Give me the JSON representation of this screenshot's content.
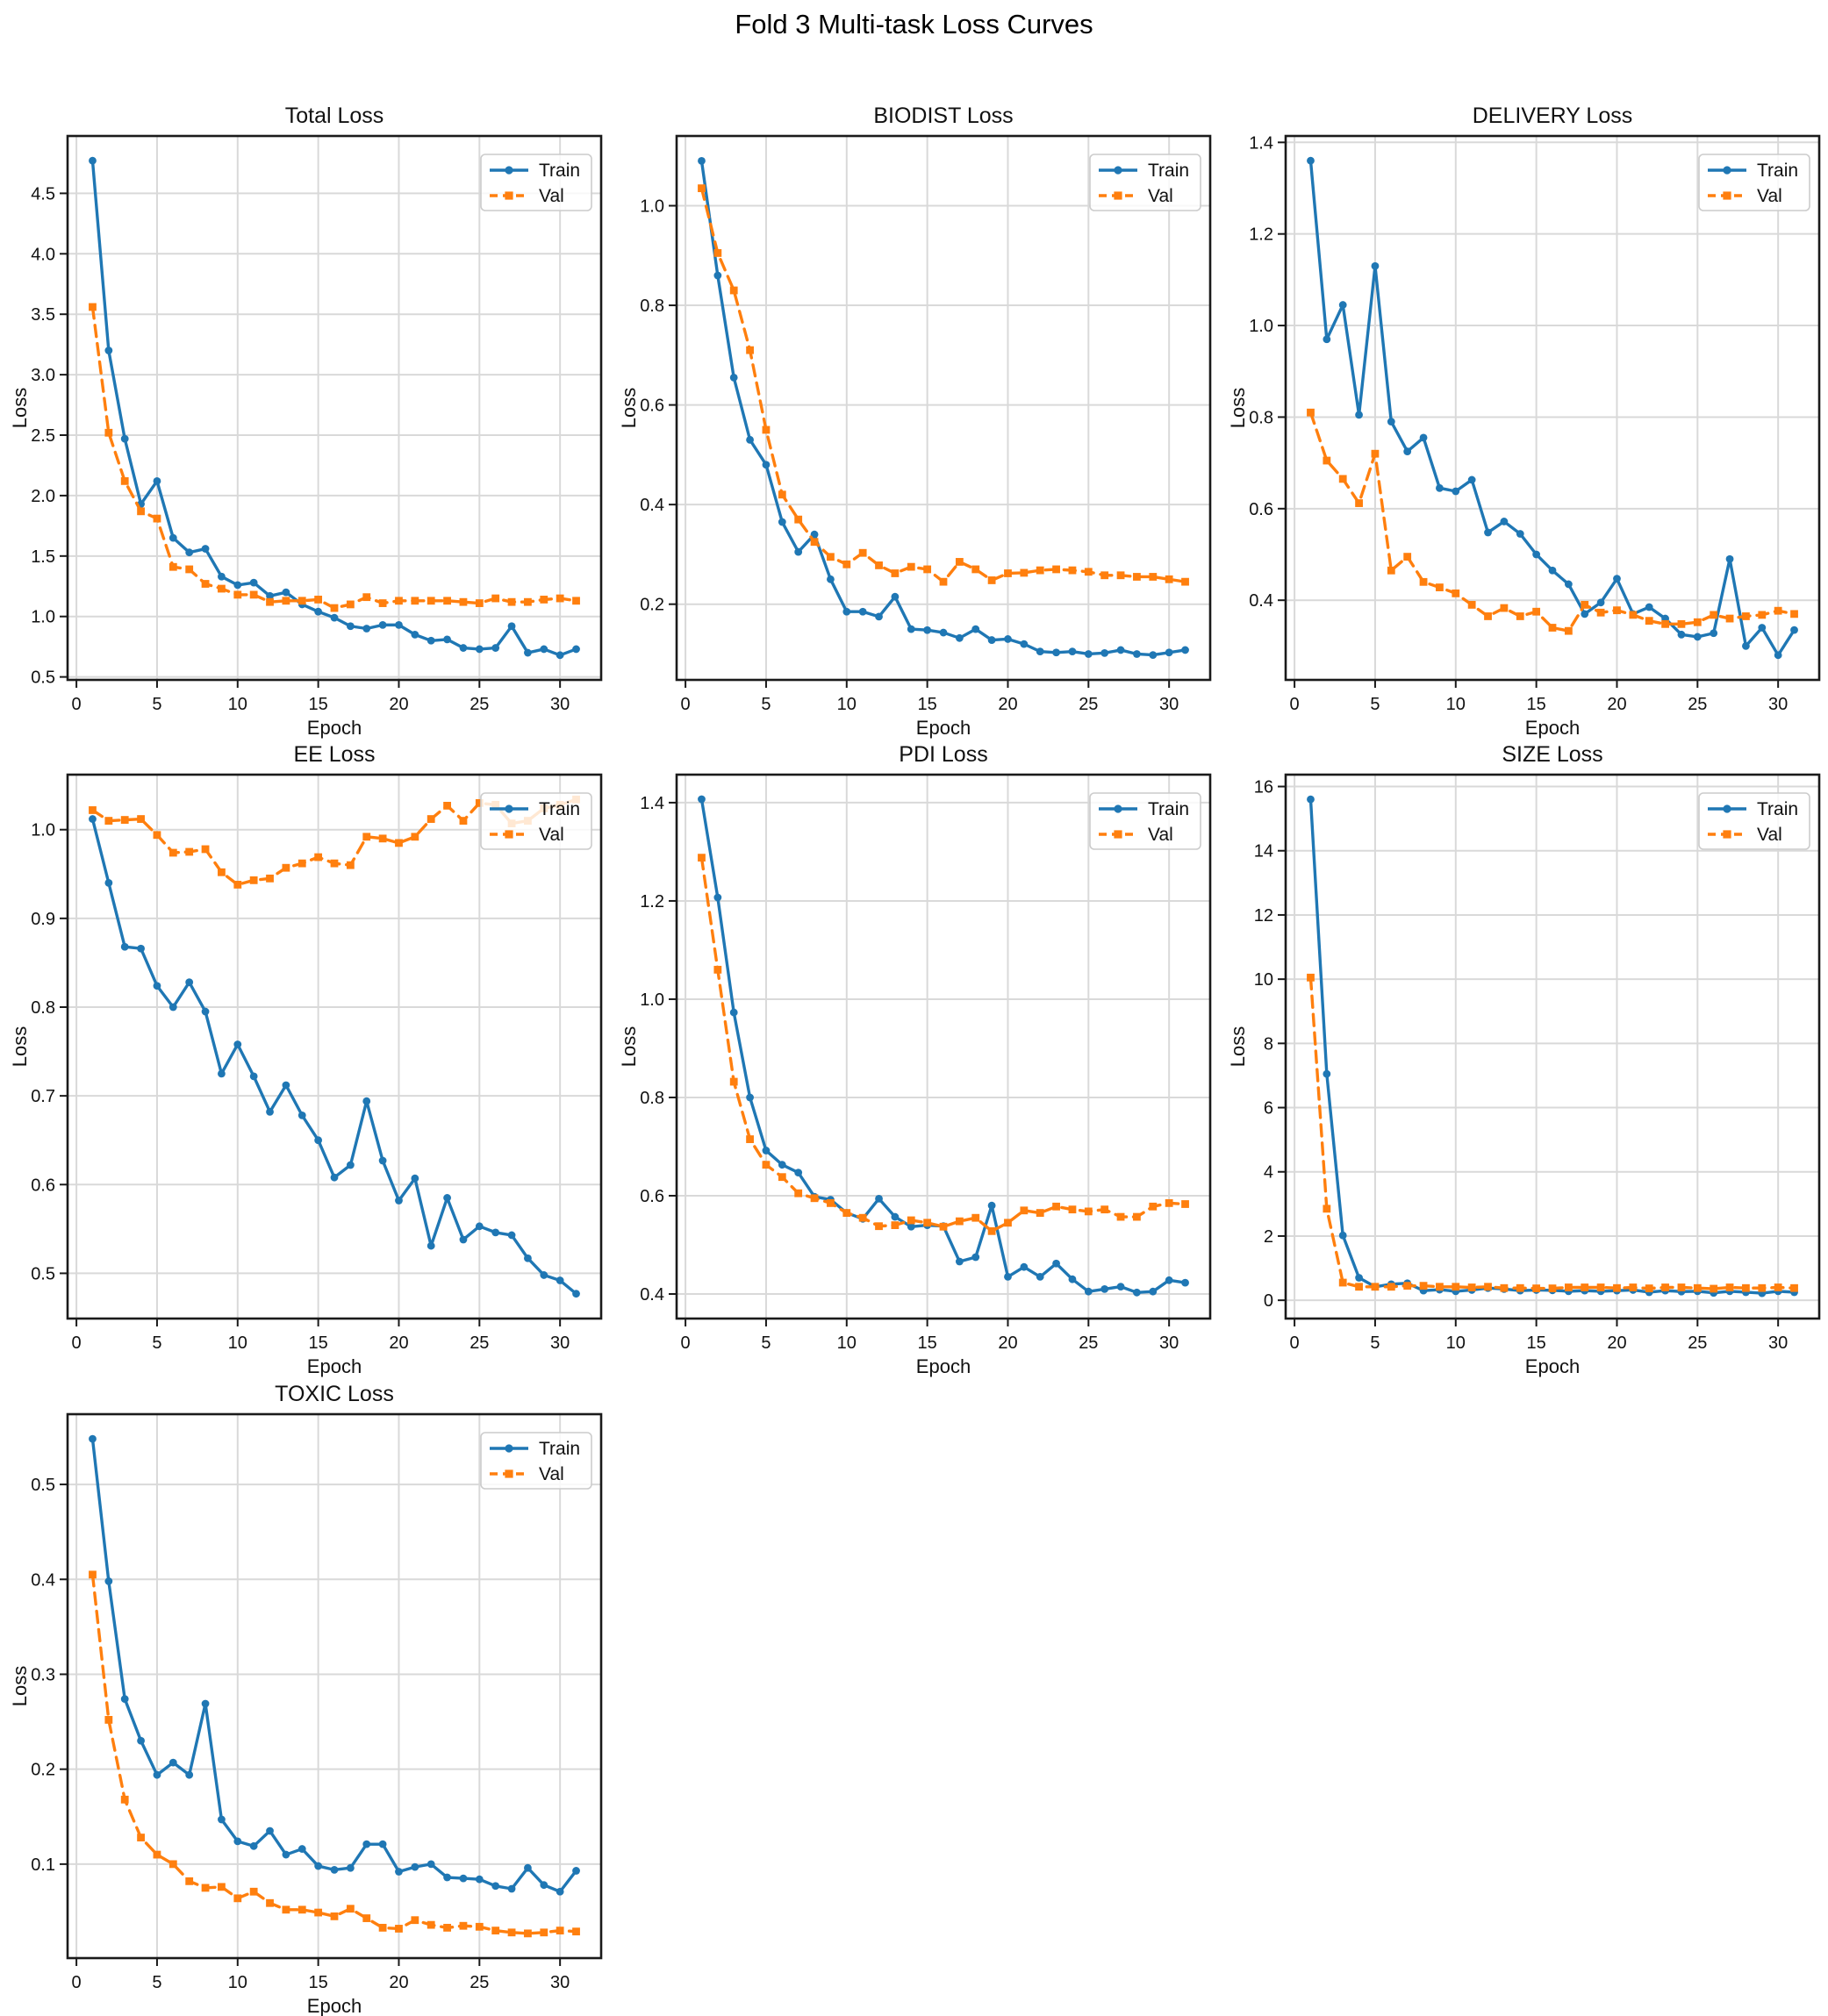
{
  "title": "Fold 3 Multi-task Loss Curves",
  "legend": {
    "train": "Train",
    "val": "Val",
    "position": "upper right"
  },
  "colors": {
    "train": "#1f77b4",
    "val": "#ff7f0e",
    "grid": "#d9d9d9",
    "spine": "#1a1a1a"
  },
  "epochs": [
    1,
    2,
    3,
    4,
    5,
    6,
    7,
    8,
    9,
    10,
    11,
    12,
    13,
    14,
    15,
    16,
    17,
    18,
    19,
    20,
    21,
    22,
    23,
    24,
    25,
    26,
    27,
    28,
    29,
    30,
    31
  ],
  "chart_data": [
    {
      "type": "line",
      "title": "Total Loss",
      "xlabel": "Epoch",
      "ylabel": "Loss",
      "xlim": [
        -0.55,
        32.55
      ],
      "ylim": [
        0.4755,
        4.9745
      ],
      "grid": true,
      "xticks": [
        "0",
        "5",
        "10",
        "15",
        "20",
        "25",
        "30"
      ],
      "yticks": [
        "0.5",
        "1.0",
        "1.5",
        "2.0",
        "2.5",
        "3.0",
        "3.5",
        "4.0",
        "4.5"
      ],
      "series": [
        {
          "name": "Train",
          "values": [
            4.77,
            3.2,
            2.47,
            1.93,
            2.12,
            1.65,
            1.53,
            1.56,
            1.33,
            1.26,
            1.28,
            1.17,
            1.2,
            1.1,
            1.04,
            0.99,
            0.92,
            0.9,
            0.93,
            0.93,
            0.85,
            0.8,
            0.81,
            0.74,
            0.73,
            0.74,
            0.92,
            0.7,
            0.73,
            0.68,
            0.73
          ]
        },
        {
          "name": "Val",
          "values": [
            3.56,
            2.52,
            2.12,
            1.87,
            1.81,
            1.41,
            1.39,
            1.27,
            1.23,
            1.18,
            1.18,
            1.12,
            1.13,
            1.13,
            1.14,
            1.07,
            1.1,
            1.16,
            1.11,
            1.13,
            1.13,
            1.13,
            1.13,
            1.12,
            1.11,
            1.15,
            1.12,
            1.12,
            1.14,
            1.15,
            1.13
          ]
        }
      ]
    },
    {
      "type": "line",
      "title": "BIODIST Loss",
      "xlabel": "Epoch",
      "ylabel": "Loss",
      "xlim": [
        -0.55,
        32.55
      ],
      "ylim": [
        0.048,
        1.14
      ],
      "grid": true,
      "xticks": [
        "0",
        "5",
        "10",
        "15",
        "20",
        "25",
        "30"
      ],
      "yticks": [
        "0.2",
        "0.4",
        "0.6",
        "0.8",
        "1.0"
      ],
      "series": [
        {
          "name": "Train",
          "values": [
            1.09,
            0.86,
            0.655,
            0.53,
            0.48,
            0.365,
            0.305,
            0.34,
            0.25,
            0.185,
            0.185,
            0.175,
            0.215,
            0.15,
            0.148,
            0.143,
            0.132,
            0.15,
            0.128,
            0.13,
            0.12,
            0.105,
            0.103,
            0.105,
            0.1,
            0.102,
            0.108,
            0.1,
            0.098,
            0.103,
            0.108
          ]
        },
        {
          "name": "Val",
          "values": [
            1.035,
            0.905,
            0.83,
            0.71,
            0.55,
            0.42,
            0.37,
            0.325,
            0.295,
            0.28,
            0.303,
            0.278,
            0.262,
            0.275,
            0.27,
            0.245,
            0.285,
            0.27,
            0.248,
            0.262,
            0.263,
            0.268,
            0.27,
            0.268,
            0.265,
            0.258,
            0.258,
            0.255,
            0.255,
            0.25,
            0.245
          ]
        }
      ]
    },
    {
      "type": "line",
      "title": "DELIVERY Loss",
      "xlabel": "Epoch",
      "ylabel": "Loss",
      "xlim": [
        -0.55,
        32.55
      ],
      "ylim": [
        0.226,
        1.414
      ],
      "grid": true,
      "xticks": [
        "0",
        "5",
        "10",
        "15",
        "20",
        "25",
        "30"
      ],
      "yticks": [
        "0.4",
        "0.6",
        "0.8",
        "1.0",
        "1.2",
        "1.4"
      ],
      "series": [
        {
          "name": "Train",
          "values": [
            1.36,
            0.97,
            1.045,
            0.805,
            1.13,
            0.79,
            0.725,
            0.755,
            0.645,
            0.638,
            0.663,
            0.548,
            0.572,
            0.545,
            0.5,
            0.465,
            0.435,
            0.37,
            0.395,
            0.447,
            0.37,
            0.385,
            0.36,
            0.325,
            0.32,
            0.328,
            0.49,
            0.3,
            0.34,
            0.28,
            0.335
          ]
        },
        {
          "name": "Val",
          "values": [
            0.81,
            0.705,
            0.665,
            0.612,
            0.72,
            0.465,
            0.495,
            0.44,
            0.428,
            0.415,
            0.39,
            0.365,
            0.383,
            0.365,
            0.375,
            0.34,
            0.333,
            0.39,
            0.373,
            0.378,
            0.368,
            0.355,
            0.348,
            0.348,
            0.352,
            0.368,
            0.36,
            0.365,
            0.368,
            0.377,
            0.37
          ]
        }
      ]
    },
    {
      "type": "line",
      "title": "EE Loss",
      "xlabel": "Epoch",
      "ylabel": "Loss",
      "xlim": [
        -0.55,
        32.55
      ],
      "ylim": [
        0.449,
        1.062
      ],
      "grid": true,
      "xticks": [
        "0",
        "5",
        "10",
        "15",
        "20",
        "25",
        "30"
      ],
      "yticks": [
        "0.5",
        "0.6",
        "0.7",
        "0.8",
        "0.9",
        "1.0"
      ],
      "series": [
        {
          "name": "Train",
          "values": [
            1.012,
            0.94,
            0.868,
            0.866,
            0.824,
            0.8,
            0.828,
            0.795,
            0.725,
            0.758,
            0.722,
            0.682,
            0.712,
            0.678,
            0.65,
            0.608,
            0.622,
            0.694,
            0.627,
            0.582,
            0.607,
            0.531,
            0.585,
            0.538,
            0.553,
            0.546,
            0.543,
            0.517,
            0.498,
            0.492,
            0.477
          ]
        },
        {
          "name": "Val",
          "values": [
            1.022,
            1.01,
            1.011,
            1.012,
            0.994,
            0.974,
            0.975,
            0.978,
            0.952,
            0.938,
            0.943,
            0.945,
            0.957,
            0.962,
            0.969,
            0.962,
            0.96,
            0.992,
            0.99,
            0.985,
            0.992,
            1.012,
            1.027,
            1.01,
            1.03,
            1.028,
            1.007,
            1.01,
            1.024,
            1.028,
            1.034
          ]
        }
      ]
    },
    {
      "type": "line",
      "title": "PDI Loss",
      "xlabel": "Epoch",
      "ylabel": "Loss",
      "xlim": [
        -0.55,
        32.55
      ],
      "ylim": [
        0.35,
        1.457
      ],
      "grid": true,
      "xticks": [
        "0",
        "5",
        "10",
        "15",
        "20",
        "25",
        "30"
      ],
      "yticks": [
        "0.4",
        "0.6",
        "0.8",
        "1.0",
        "1.2",
        "1.4"
      ],
      "series": [
        {
          "name": "Train",
          "values": [
            1.407,
            1.207,
            0.973,
            0.8,
            0.692,
            0.663,
            0.647,
            0.598,
            0.592,
            0.565,
            0.553,
            0.594,
            0.557,
            0.537,
            0.54,
            0.538,
            0.466,
            0.475,
            0.58,
            0.435,
            0.455,
            0.435,
            0.462,
            0.43,
            0.405,
            0.41,
            0.415,
            0.403,
            0.405,
            0.428,
            0.423
          ]
        },
        {
          "name": "Val",
          "values": [
            1.288,
            1.06,
            0.832,
            0.715,
            0.663,
            0.638,
            0.605,
            0.595,
            0.585,
            0.565,
            0.555,
            0.538,
            0.54,
            0.55,
            0.545,
            0.537,
            0.548,
            0.555,
            0.528,
            0.545,
            0.57,
            0.565,
            0.578,
            0.572,
            0.568,
            0.572,
            0.557,
            0.557,
            0.578,
            0.585,
            0.583
          ]
        }
      ]
    },
    {
      "type": "line",
      "title": "SIZE Loss",
      "xlabel": "Epoch",
      "ylabel": "Loss",
      "xlim": [
        -0.55,
        32.55
      ],
      "ylim": [
        -0.57,
        16.37
      ],
      "grid": true,
      "xticks": [
        "0",
        "5",
        "10",
        "15",
        "20",
        "25",
        "30"
      ],
      "yticks": [
        "0",
        "2",
        "4",
        "6",
        "8",
        "10",
        "12",
        "14",
        "16"
      ],
      "series": [
        {
          "name": "Train",
          "values": [
            15.6,
            7.05,
            2.02,
            0.7,
            0.42,
            0.5,
            0.53,
            0.3,
            0.33,
            0.28,
            0.32,
            0.38,
            0.35,
            0.3,
            0.32,
            0.31,
            0.28,
            0.3,
            0.28,
            0.3,
            0.32,
            0.25,
            0.3,
            0.27,
            0.28,
            0.23,
            0.28,
            0.25,
            0.22,
            0.28,
            0.25
          ]
        },
        {
          "name": "Val",
          "values": [
            10.05,
            2.85,
            0.55,
            0.42,
            0.42,
            0.42,
            0.45,
            0.45,
            0.42,
            0.42,
            0.4,
            0.42,
            0.38,
            0.38,
            0.37,
            0.37,
            0.4,
            0.4,
            0.4,
            0.38,
            0.4,
            0.37,
            0.4,
            0.4,
            0.38,
            0.36,
            0.4,
            0.38,
            0.38,
            0.4,
            0.38
          ]
        }
      ]
    },
    {
      "type": "line",
      "title": "TOXIC Loss",
      "xlabel": "Epoch",
      "ylabel": "Loss",
      "xlim": [
        -0.55,
        32.55
      ],
      "ylim": [
        0.001,
        0.574
      ],
      "grid": true,
      "xticks": [
        "0",
        "5",
        "10",
        "15",
        "20",
        "25",
        "30"
      ],
      "yticks": [
        "0.1",
        "0.2",
        "0.3",
        "0.4",
        "0.5"
      ],
      "series": [
        {
          "name": "Train",
          "values": [
            0.548,
            0.398,
            0.274,
            0.23,
            0.194,
            0.207,
            0.194,
            0.269,
            0.147,
            0.124,
            0.119,
            0.135,
            0.11,
            0.116,
            0.098,
            0.094,
            0.096,
            0.121,
            0.121,
            0.092,
            0.097,
            0.1,
            0.086,
            0.085,
            0.084,
            0.077,
            0.074,
            0.096,
            0.078,
            0.071,
            0.093
          ]
        },
        {
          "name": "Val",
          "values": [
            0.405,
            0.252,
            0.168,
            0.128,
            0.11,
            0.1,
            0.082,
            0.075,
            0.076,
            0.064,
            0.071,
            0.059,
            0.052,
            0.052,
            0.049,
            0.045,
            0.053,
            0.043,
            0.033,
            0.032,
            0.041,
            0.036,
            0.033,
            0.035,
            0.034,
            0.03,
            0.028,
            0.027,
            0.028,
            0.03,
            0.029
          ]
        }
      ]
    }
  ]
}
